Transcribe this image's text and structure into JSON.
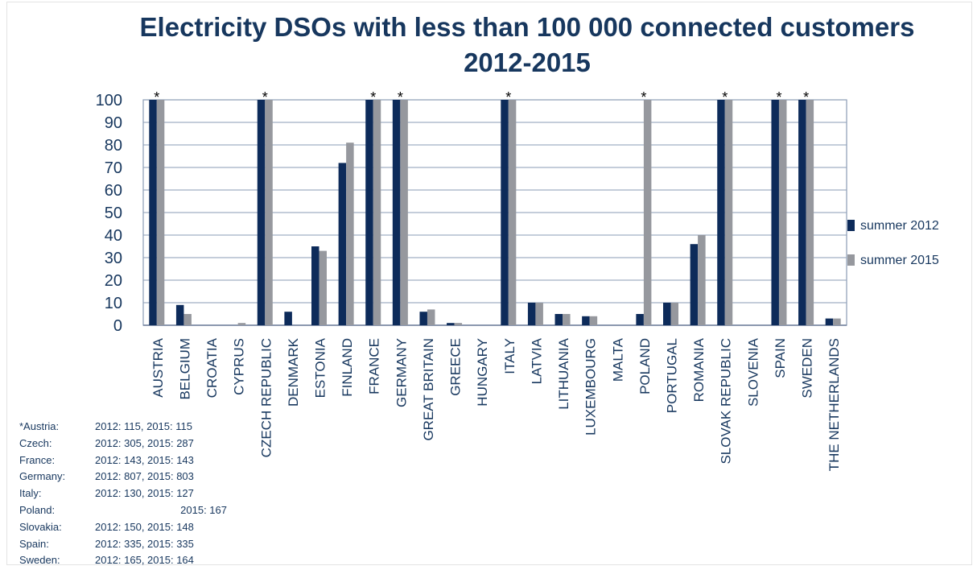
{
  "chart_data": {
    "type": "bar",
    "title": "Electricity DSOs with less than 100 000 connected customers 2012-2015",
    "categories": [
      "AUSTRIA",
      "BELGIUM",
      "CROATIA",
      "CYPRUS",
      "CZECH REPUBLIC",
      "DENMARK",
      "ESTONIA",
      "FINLAND",
      "FRANCE",
      "GERMANY",
      "GREAT BRITAIN",
      "GREECE",
      "HUNGARY",
      "ITALY",
      "LATVIA",
      "LITHUANIA",
      "LUXEMBOURG",
      "MALTA",
      "POLAND",
      "PORTUGAL",
      "ROMANIA",
      "SLOVAK REPUBLIC",
      "SLOVENIA",
      "SPAIN",
      "SWEDEN",
      "THE NETHERLANDS"
    ],
    "series": [
      {
        "name": "summer 2012",
        "color": "#0d2b5a",
        "values": [
          100,
          9,
          0,
          0,
          100,
          6,
          35,
          72,
          100,
          100,
          6,
          1,
          0,
          100,
          10,
          5,
          4,
          0,
          5,
          10,
          36,
          100,
          0,
          100,
          100,
          3
        ]
      },
      {
        "name": "summer 2015",
        "color": "#96989e",
        "values": [
          100,
          5,
          0,
          1,
          100,
          0,
          33,
          81,
          100,
          100,
          7,
          1,
          0,
          100,
          10,
          5,
          4,
          0,
          100,
          10,
          40,
          100,
          0,
          100,
          100,
          3
        ]
      }
    ],
    "asterisk_label": "*",
    "asterisk_categories": [
      "AUSTRIA",
      "CZECH REPUBLIC",
      "FRANCE",
      "GERMANY",
      "ITALY",
      "POLAND",
      "SLOVAK REPUBLIC",
      "SPAIN",
      "SWEDEN"
    ],
    "ylim": [
      0,
      100
    ],
    "y_ticks": [
      0,
      10,
      20,
      30,
      40,
      50,
      60,
      70,
      80,
      90,
      100
    ],
    "grid": true,
    "legend_position": "right",
    "xlabel": "",
    "ylabel": ""
  },
  "notes": [
    {
      "name": "*Austria:",
      "value": "2012: 115, 2015: 115"
    },
    {
      "name": "Czech:",
      "value": "2012: 305, 2015: 287"
    },
    {
      "name": "France:",
      "value": "2012: 143, 2015: 143"
    },
    {
      "name": "Germany:",
      "value": "2012: 807, 2015: 803"
    },
    {
      "name": "Italy:",
      "value": "2012: 130, 2015: 127"
    },
    {
      "name": "Poland:",
      "value": "2015: 167",
      "align": "right"
    },
    {
      "name": "Slovakia:",
      "value": "2012: 150, 2015: 148"
    },
    {
      "name": "Spain:",
      "value": "2012: 335, 2015: 335"
    },
    {
      "name": "Sweden:",
      "value": "2012: 165, 2015: 164"
    }
  ]
}
